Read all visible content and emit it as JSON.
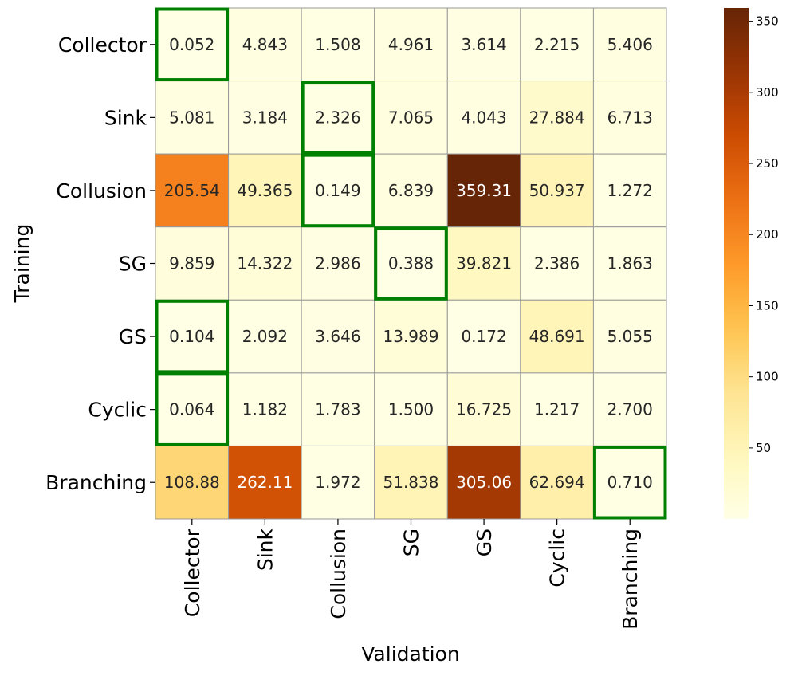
{
  "chart_data": {
    "type": "heatmap",
    "title": "",
    "xlabel": "Validation",
    "ylabel": "Training",
    "x_categories": [
      "Collector",
      "Sink",
      "Collusion",
      "SG",
      "GS",
      "Cyclic",
      "Branching"
    ],
    "y_categories": [
      "Collector",
      "Sink",
      "Collusion",
      "SG",
      "GS",
      "Cyclic",
      "Branching"
    ],
    "values": [
      [
        0.052,
        4.843,
        1.508,
        4.961,
        3.614,
        2.215,
        5.406
      ],
      [
        5.081,
        3.184,
        2.326,
        7.065,
        4.043,
        27.884,
        6.713
      ],
      [
        205.54,
        49.365,
        0.149,
        6.839,
        359.31,
        50.937,
        1.272
      ],
      [
        9.859,
        14.322,
        2.986,
        0.388,
        39.821,
        2.386,
        1.863
      ],
      [
        0.104,
        2.092,
        3.646,
        13.989,
        0.172,
        48.691,
        5.055
      ],
      [
        0.064,
        1.182,
        1.783,
        1.5,
        16.725,
        1.217,
        2.7
      ],
      [
        108.88,
        262.11,
        1.972,
        51.838,
        305.06,
        62.694,
        0.71
      ]
    ],
    "labels": [
      [
        "0.052",
        "4.843",
        "1.508",
        "4.961",
        "3.614",
        "2.215",
        "5.406"
      ],
      [
        "5.081",
        "3.184",
        "2.326",
        "7.065",
        "4.043",
        "27.884",
        "6.713"
      ],
      [
        "205.54",
        "49.365",
        "0.149",
        "6.839",
        "359.31",
        "50.937",
        "1.272"
      ],
      [
        "9.859",
        "14.322",
        "2.986",
        "0.388",
        "39.821",
        "2.386",
        "1.863"
      ],
      [
        "0.104",
        "2.092",
        "3.646",
        "13.989",
        "0.172",
        "48.691",
        "5.055"
      ],
      [
        "0.064",
        "1.182",
        "1.783",
        "1.500",
        "16.725",
        "1.217",
        "2.700"
      ],
      [
        "108.88",
        "262.11",
        "1.972",
        "51.838",
        "305.06",
        "62.694",
        "0.710"
      ]
    ],
    "highlighted_cells": [
      [
        0,
        0
      ],
      [
        1,
        2
      ],
      [
        2,
        2
      ],
      [
        3,
        3
      ],
      [
        4,
        0
      ],
      [
        5,
        0
      ],
      [
        6,
        6
      ]
    ],
    "highlight_color": "#008000",
    "colormap": "YlOrBr",
    "colorbar": {
      "range": [
        0.052,
        359.31
      ],
      "ticks": [
        50,
        100,
        150,
        200,
        250,
        300,
        350
      ]
    },
    "grid_line_color": "#999999"
  }
}
